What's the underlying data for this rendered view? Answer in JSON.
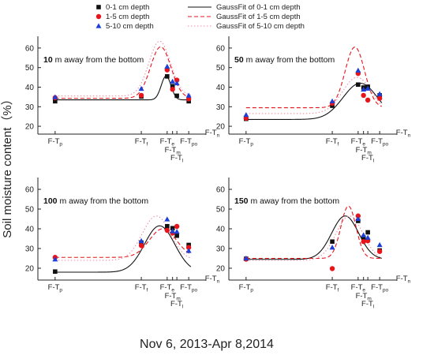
{
  "figure": {
    "ylabel": "Soil moisture content（%）",
    "xlabel": "Nov 6, 2013-Apr 8,2014"
  },
  "legend": [
    {
      "name": "0-1 cm depth",
      "kind": "marker",
      "marker": "square",
      "color": "#111111"
    },
    {
      "name": "GaussFit of  0-1 cm depth",
      "kind": "line",
      "dash": "solid",
      "color": "#111111"
    },
    {
      "name": "1-5 cm depth",
      "kind": "marker",
      "marker": "circle",
      "color": "#e8141b"
    },
    {
      "name": "GaussFit of  1-5 cm depth",
      "kind": "line",
      "dash": "dashed",
      "color": "#e8141b"
    },
    {
      "name": "5-10 cm depth",
      "kind": "marker",
      "marker": "triangle",
      "color": "#1c3fd8"
    },
    {
      "name": "GaussFit of  5-10 cm depth",
      "kind": "line",
      "dash": "dotted",
      "color": "#ee8fa6"
    }
  ],
  "chart_data": [
    {
      "type": "scatter",
      "title_bold": "10",
      "title_rest": " m away from the bottom",
      "x_ticks": [
        {
          "x": 0,
          "label": "F-T",
          "sub": "p"
        },
        {
          "x": 4,
          "label": "F-T",
          "sub": "f"
        },
        {
          "x": 5.2,
          "label": "F-T",
          "sub": "e"
        },
        {
          "x": 5.45,
          "label": "F-T",
          "sub": "m"
        },
        {
          "x": 5.65,
          "label": "F-T",
          "sub": "l"
        },
        {
          "x": 6.2,
          "label": "F-T",
          "sub": "po"
        },
        {
          "x": 6.8,
          "label": "F-T",
          "sub": "n"
        }
      ],
      "xlim": [
        -0.8,
        7.0
      ],
      "ylim": [
        16,
        66
      ],
      "y_ticks": [
        20,
        30,
        40,
        50,
        60
      ],
      "series": [
        {
          "name": "0-1 cm depth",
          "x": [
            0,
            4,
            5.2,
            5.45,
            5.65,
            6.2
          ],
          "y": [
            32.8,
            35.2,
            45.5,
            40.5,
            35.6,
            32.8
          ]
        },
        {
          "name": "1-5 cm depth",
          "x": [
            0,
            4,
            5.2,
            5.45,
            5.65,
            6.2
          ],
          "y": [
            34.6,
            35.8,
            48.8,
            38.9,
            43.6,
            34.0
          ]
        },
        {
          "name": "5-10 cm depth",
          "x": [
            0,
            4,
            5.2,
            5.45,
            5.65,
            6.2
          ],
          "y": [
            34.9,
            39.2,
            50.5,
            42.9,
            42.0,
            35.7
          ]
        }
      ],
      "fits": [
        {
          "name": "GaussFit of  0-1 cm depth",
          "y0": 33.5,
          "A": 12.2,
          "xc": 5.15,
          "w": 0.45
        },
        {
          "name": "GaussFit of  1-5 cm depth",
          "y0": 34.3,
          "A": 26.3,
          "xc": 4.9,
          "w": 0.95
        },
        {
          "name": "GaussFit of  5-10 cm depth",
          "y0": 35.5,
          "A": 28.0,
          "xc": 4.85,
          "w": 1.0
        }
      ]
    },
    {
      "type": "scatter",
      "title_bold": "50",
      "title_rest": " m away from the bottom",
      "x_ticks": [
        {
          "x": 0,
          "label": "F-T",
          "sub": "p"
        },
        {
          "x": 4,
          "label": "F-T",
          "sub": "f"
        },
        {
          "x": 5.2,
          "label": "F-T",
          "sub": "e"
        },
        {
          "x": 5.45,
          "label": "F-T",
          "sub": "m"
        },
        {
          "x": 5.65,
          "label": "F-T",
          "sub": "l"
        },
        {
          "x": 6.2,
          "label": "F-T",
          "sub": "po"
        },
        {
          "x": 6.8,
          "label": "F-T",
          "sub": "n"
        }
      ],
      "xlim": [
        -0.8,
        7.0
      ],
      "ylim": [
        16,
        66
      ],
      "y_ticks": [
        20,
        30,
        40,
        50,
        60
      ],
      "series": [
        {
          "name": "0-1 cm depth",
          "x": [
            0,
            4,
            5.2,
            5.45,
            5.65,
            6.2
          ],
          "y": [
            23.8,
            30.5,
            41.3,
            39.8,
            40.2,
            35.8
          ]
        },
        {
          "name": "1-5 cm depth",
          "x": [
            0,
            4,
            5.2,
            5.45,
            5.65,
            6.2
          ],
          "y": [
            24.1,
            31.8,
            47.0,
            35.8,
            33.4,
            34.3
          ]
        },
        {
          "name": "5-10 cm depth",
          "x": [
            0,
            4,
            5.2,
            5.45,
            5.65,
            6.2
          ],
          "y": [
            25.8,
            32.8,
            48.5,
            38.8,
            39.3,
            36.5
          ]
        }
      ],
      "fits": [
        {
          "name": "GaussFit of  0-1 cm depth",
          "y0": 23.5,
          "A": 18.5,
          "xc": 5.3,
          "w": 1.6
        },
        {
          "name": "GaussFit of  1-5 cm depth",
          "y0": 29.5,
          "A": 31.0,
          "xc": 5.05,
          "w": 0.9
        },
        {
          "name": "GaussFit of  5-10 cm depth",
          "y0": 26.5,
          "A": 18.5,
          "xc": 5.15,
          "w": 1.35
        }
      ]
    },
    {
      "type": "scatter",
      "title_bold": "100",
      "title_rest": " m away from the bottom",
      "x_ticks": [
        {
          "x": 0,
          "label": "F-T",
          "sub": "p"
        },
        {
          "x": 4,
          "label": "F-T",
          "sub": "f"
        },
        {
          "x": 5.2,
          "label": "F-T",
          "sub": "e"
        },
        {
          "x": 5.45,
          "label": "F-T",
          "sub": "m"
        },
        {
          "x": 5.65,
          "label": "F-T",
          "sub": "l"
        },
        {
          "x": 6.2,
          "label": "F-T",
          "sub": "po"
        },
        {
          "x": 6.8,
          "label": "F-T",
          "sub": "n"
        }
      ],
      "xlim": [
        -0.8,
        7.0
      ],
      "ylim": [
        14,
        66
      ],
      "y_ticks": [
        20,
        30,
        40,
        50,
        60
      ],
      "series": [
        {
          "name": "0-1 cm depth",
          "x": [
            0,
            4,
            5.2,
            5.45,
            5.65,
            6.2
          ],
          "y": [
            18.3,
            33.0,
            41.3,
            40.3,
            36.5,
            31.8
          ]
        },
        {
          "name": "1-5 cm depth",
          "x": [
            0,
            4,
            5.2,
            5.45,
            5.65,
            6.2
          ],
          "y": [
            25.5,
            31.5,
            39.2,
            37.8,
            41.2,
            30.5
          ]
        },
        {
          "name": "5-10 cm depth",
          "x": [
            0,
            4,
            5.2,
            5.45,
            5.65,
            6.2
          ],
          "y": [
            24.5,
            33.8,
            44.8,
            38.8,
            38.5,
            28.8
          ]
        }
      ],
      "fits": [
        {
          "name": "GaussFit of  0-1 cm depth",
          "y0": 18.0,
          "A": 23.5,
          "xc": 4.85,
          "w": 1.4
        },
        {
          "name": "GaussFit of  1-5 cm depth",
          "y0": 25.5,
          "A": 14.5,
          "xc": 5.0,
          "w": 1.25
        },
        {
          "name": "GaussFit of  5-10 cm depth",
          "y0": 24.0,
          "A": 22.5,
          "xc": 4.7,
          "w": 1.3
        }
      ]
    },
    {
      "type": "scatter",
      "title_bold": "150",
      "title_rest": " m away from the bottom",
      "x_ticks": [
        {
          "x": 0,
          "label": "F-T",
          "sub": "p"
        },
        {
          "x": 4,
          "label": "F-T",
          "sub": "f"
        },
        {
          "x": 5.2,
          "label": "F-T",
          "sub": "e"
        },
        {
          "x": 5.45,
          "label": "F-T",
          "sub": "m"
        },
        {
          "x": 5.65,
          "label": "F-T",
          "sub": "l"
        },
        {
          "x": 6.2,
          "label": "F-T",
          "sub": "po"
        },
        {
          "x": 6.8,
          "label": "F-T",
          "sub": "n"
        }
      ],
      "xlim": [
        -0.8,
        7.0
      ],
      "ylim": [
        14,
        66
      ],
      "y_ticks": [
        20,
        30,
        40,
        50,
        60
      ],
      "series": [
        {
          "name": "0-1 cm depth",
          "x": [
            0,
            4,
            5.2,
            5.45,
            5.65,
            6.2
          ],
          "y": [
            24.8,
            33.5,
            44.0,
            35.5,
            38.2,
            29.0
          ]
        },
        {
          "name": "1-5 cm depth",
          "x": [
            0,
            4,
            5.2,
            5.45,
            5.65,
            6.2
          ],
          "y": [
            24.6,
            19.8,
            46.5,
            33.5,
            33.9,
            28.5
          ]
        },
        {
          "name": "5-10 cm depth",
          "x": [
            0,
            4,
            5.2,
            5.45,
            5.65,
            6.2
          ],
          "y": [
            25.0,
            30.5,
            45.0,
            36.8,
            35.5,
            31.8
          ]
        }
      ],
      "fits": [
        {
          "name": "GaussFit of  0-1 cm depth",
          "y0": 24.5,
          "A": 22.0,
          "xc": 4.6,
          "w": 1.25
        },
        {
          "name": "GaussFit of  1-5 cm depth",
          "y0": 25.0,
          "A": 26.5,
          "xc": 4.75,
          "w": 0.7
        },
        {
          "name": "GaussFit of  5-10 cm depth",
          "y0": 24.0,
          "A": 22.5,
          "xc": 4.8,
          "w": 1.25
        }
      ]
    }
  ]
}
